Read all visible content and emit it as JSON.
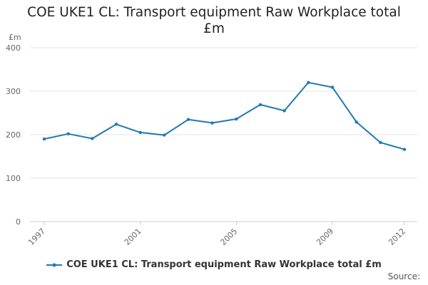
{
  "title_line1": "COE UKE1 CL: Transport equipment Raw Workplace total",
  "title_line2": "£m",
  "source_label": "Source:",
  "colors": {
    "series": "#1f7ab3",
    "grid": "#e6e6e6",
    "axis": "#cccccc"
  },
  "chart_data": {
    "type": "line",
    "title": "COE UKE1 CL: Transport equipment Raw Workplace total £m",
    "ylabel": "£m",
    "xlabel": "",
    "ylim": [
      0,
      400
    ],
    "yticks": [
      0,
      100,
      200,
      300,
      400
    ],
    "xticks": [
      1997,
      2001,
      2005,
      2009,
      2012
    ],
    "grid": true,
    "legend_position": "bottom",
    "series": [
      {
        "name": "COE UKE1 CL: Transport equipment Raw Workplace total £m",
        "x": [
          1997,
          1998,
          1999,
          2000,
          2001,
          2002,
          2003,
          2004,
          2005,
          2006,
          2007,
          2008,
          2009,
          2010,
          2011,
          2012
        ],
        "y": [
          190,
          202,
          191,
          224,
          205,
          199,
          235,
          227,
          236,
          269,
          255,
          320,
          309,
          229,
          182,
          166
        ]
      }
    ]
  }
}
